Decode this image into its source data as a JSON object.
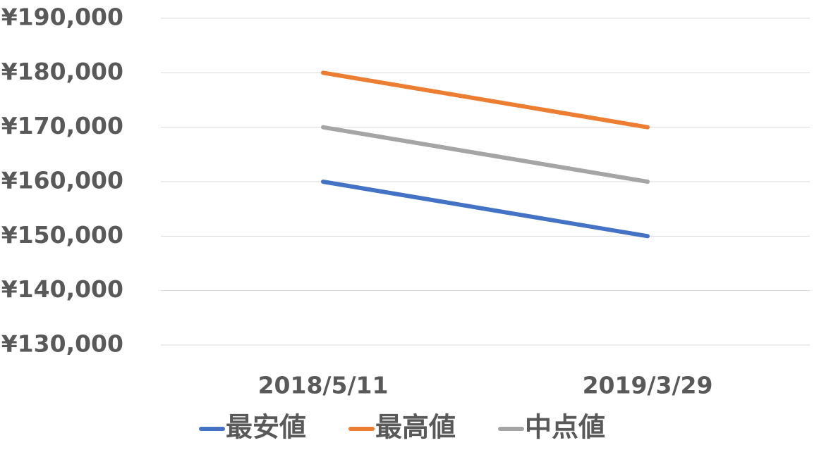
{
  "chart_data": {
    "type": "line",
    "categories": [
      "2018/5/11",
      "2019/3/29"
    ],
    "series": [
      {
        "name": "最安値",
        "color": "#4472c4",
        "values": [
          160000,
          150000
        ]
      },
      {
        "name": "最高値",
        "color": "#ed7d31",
        "values": [
          180000,
          170000
        ]
      },
      {
        "name": "中点値",
        "color": "#a5a5a5",
        "values": [
          170000,
          160000
        ]
      }
    ],
    "ylim": [
      130000,
      190000
    ],
    "yticks": [
      {
        "value": 130000,
        "label": "¥130,000"
      },
      {
        "value": 140000,
        "label": "¥140,000"
      },
      {
        "value": 150000,
        "label": "¥150,000"
      },
      {
        "value": 160000,
        "label": "¥160,000"
      },
      {
        "value": 170000,
        "label": "¥170,000"
      },
      {
        "value": 180000,
        "label": "¥180,000"
      },
      {
        "value": 190000,
        "label": "¥190,000"
      }
    ],
    "grid": true,
    "legend": "bottom"
  }
}
